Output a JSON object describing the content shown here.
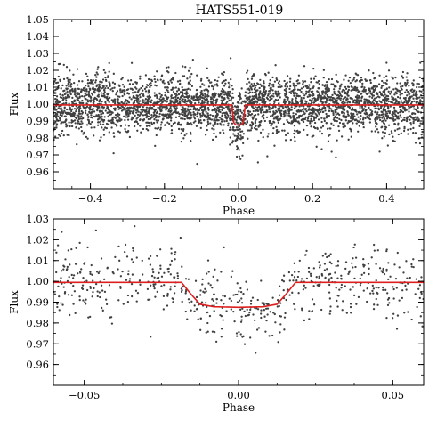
{
  "chart_data": [
    {
      "type": "scatter",
      "title": "HATS551-019",
      "xlabel": "Phase",
      "ylabel": "Flux",
      "xlim": [
        -0.5,
        0.5
      ],
      "ylim": [
        0.95,
        1.05
      ],
      "xticks": [
        -0.4,
        -0.2,
        0.0,
        0.2,
        0.4
      ],
      "xtick_labels": [
        "−0.4",
        "−0.2",
        "0.0",
        "0.2",
        "0.4"
      ],
      "yticks": [
        0.96,
        0.97,
        0.98,
        0.99,
        1.0,
        1.01,
        1.02,
        1.03,
        1.04,
        1.05
      ],
      "ytick_labels": [
        "0.96",
        "0.97",
        "0.98",
        "0.99",
        "1.00",
        "1.01",
        "1.02",
        "1.03",
        "1.04",
        "1.05"
      ],
      "series": [
        {
          "kind": "points",
          "color": "#404040",
          "n_points": 3600,
          "baseline_flux": 1.0,
          "scatter_sigma": 0.0085,
          "transit_center": 0.0,
          "transit_half_duration": 0.016,
          "transit_depth": 0.0125
        },
        {
          "kind": "model",
          "color": "#dd1f1f",
          "x": [
            -0.5,
            -0.0185,
            -0.0155,
            -0.0125,
            -0.008,
            0.0,
            0.008,
            0.0125,
            0.0155,
            0.0185,
            0.5
          ],
          "y": [
            0.9995,
            0.9995,
            0.994,
            0.989,
            0.9878,
            0.9875,
            0.9878,
            0.989,
            0.994,
            0.9995,
            0.9995
          ]
        }
      ]
    },
    {
      "type": "scatter",
      "xlabel": "Phase",
      "ylabel": "Flux",
      "xlim": [
        -0.06,
        0.06
      ],
      "ylim": [
        0.95,
        1.03
      ],
      "xticks": [
        -0.05,
        0.0,
        0.05
      ],
      "xtick_labels": [
        "−0.05",
        "0.00",
        "0.05"
      ],
      "yticks": [
        0.96,
        0.97,
        0.98,
        0.99,
        1.0,
        1.01,
        1.02,
        1.03
      ],
      "ytick_labels": [
        "0.96",
        "0.97",
        "0.98",
        "0.99",
        "1.00",
        "1.01",
        "1.02",
        "1.03"
      ],
      "series": [
        {
          "kind": "points",
          "color": "#404040",
          "n_points": 620,
          "baseline_flux": 1.0,
          "scatter_sigma": 0.0085,
          "transit_center": 0.0,
          "transit_half_duration": 0.016,
          "transit_depth": 0.0125
        },
        {
          "kind": "model",
          "color": "#dd1f1f",
          "x": [
            -0.06,
            -0.0185,
            -0.0155,
            -0.0125,
            -0.008,
            0.0,
            0.008,
            0.0125,
            0.0155,
            0.0185,
            0.06
          ],
          "y": [
            0.9995,
            0.9995,
            0.994,
            0.989,
            0.9878,
            0.9875,
            0.9878,
            0.989,
            0.994,
            0.9995,
            0.9995
          ]
        }
      ]
    }
  ]
}
